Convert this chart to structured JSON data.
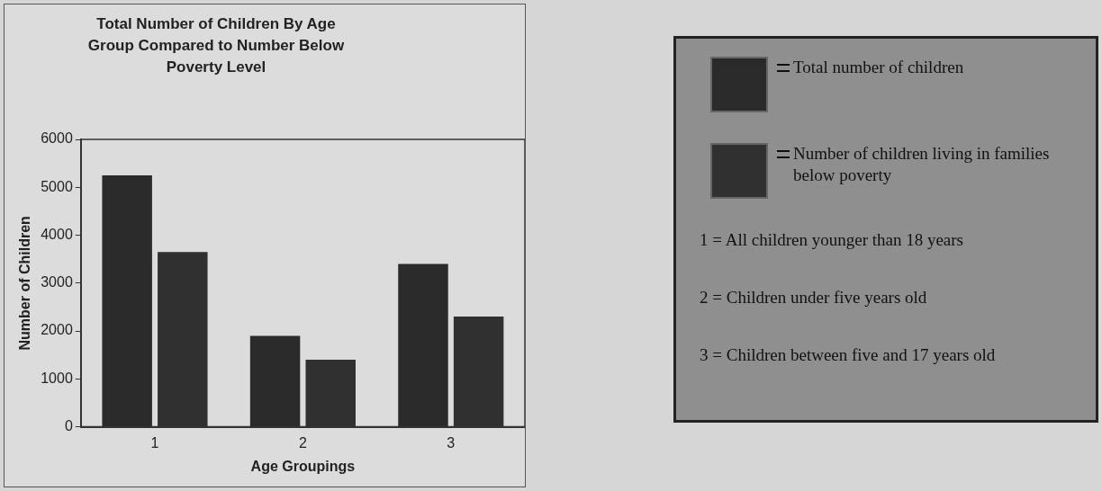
{
  "chart_data": {
    "type": "bar",
    "title": "Total Number of Children By Age Group Compared to Number Below Poverty Level",
    "xlabel": "Age Groupings",
    "ylabel": "Number of Children",
    "categories": [
      "1",
      "2",
      "3"
    ],
    "series": [
      {
        "name": "Total number of children",
        "color": "#2a2a2a",
        "values": [
          5250,
          1900,
          3400
        ]
      },
      {
        "name": "Number of children living in families below poverty",
        "color": "#303030",
        "values": [
          3650,
          1400,
          2300
        ]
      }
    ],
    "ylim": [
      0,
      6000
    ],
    "yticks": [
      0,
      1000,
      2000,
      3000,
      4000,
      5000,
      6000
    ],
    "grid": false,
    "legend": "right",
    "annotations": [
      "1 = All children younger than 18 years",
      "2 = Children under five years old",
      "3 = Children between five and 17 years old"
    ]
  }
}
